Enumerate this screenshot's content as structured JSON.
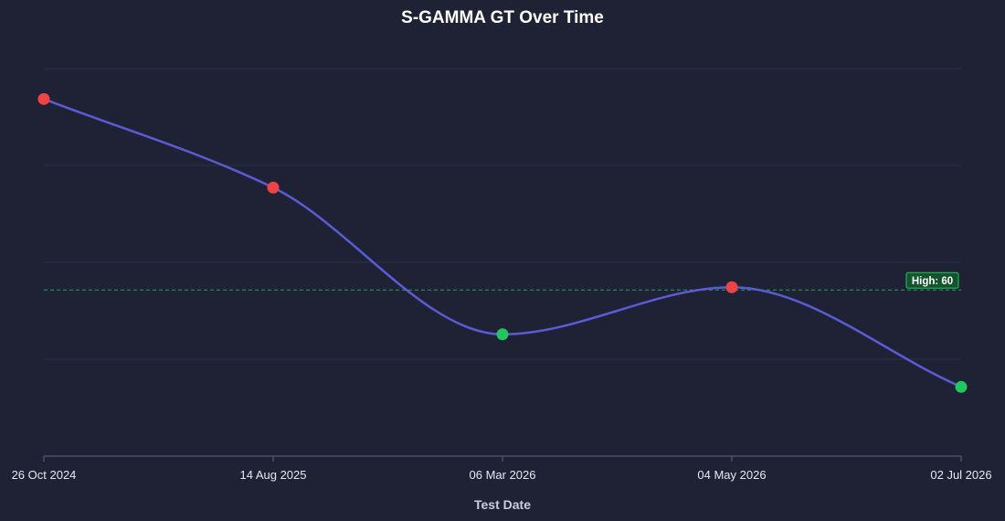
{
  "chart_data": {
    "type": "line",
    "title": "S-GAMMA GT Over Time",
    "xlabel": "Test Date",
    "ylabel": "",
    "x": [
      "26 Oct 2024",
      "14 Aug 2025",
      "06 Mar 2026",
      "04 May 2026",
      "02 Jul 2026"
    ],
    "series": [
      {
        "values": [
          129,
          97,
          44,
          61,
          25
        ],
        "color": "#5b5bd6",
        "point_colors": [
          "#ef4444",
          "#ef4444",
          "#22c55e",
          "#ef4444",
          "#22c55e"
        ]
      }
    ],
    "reference_line": {
      "label": "High: 60",
      "value": 60,
      "color": "#22c55e",
      "style": "dashed"
    },
    "ylim": [
      0,
      140
    ],
    "grid": true,
    "y_tick_labels_visible": false
  },
  "colors": {
    "background": "#1f2235",
    "grid": "#2d3148",
    "axis": "#4a4f68",
    "line": "#5b5bd6",
    "above_range": "#ef4444",
    "in_range": "#22c55e"
  }
}
